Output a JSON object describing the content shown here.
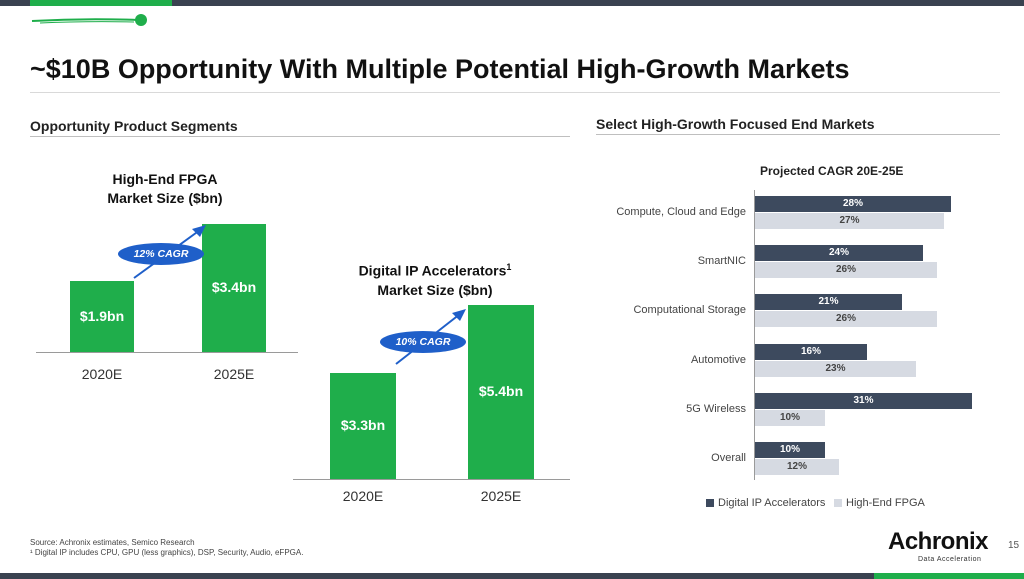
{
  "title": "~$10B Opportunity With Multiple Potential High-Growth Markets",
  "left_section_heading": "Opportunity Product Segments",
  "right_section_heading": "Select High-Growth Focused End Markets",
  "colors": {
    "green": "#1fae4b",
    "navy": "#3d4a5e",
    "light": "#d6dae2",
    "cagr_blue": "#1f5fc9",
    "bar_dark": "#3a4250"
  },
  "chart_data": [
    {
      "type": "bar",
      "title_line1": "High-End FPGA",
      "title_line2": "Market Size ($bn)",
      "categories": [
        "2020E",
        "2025E"
      ],
      "values": [
        1.9,
        3.4
      ],
      "value_labels": [
        "$1.9bn",
        "$3.4bn"
      ],
      "annotation": "12% CAGR"
    },
    {
      "type": "bar",
      "title_line1": "Digital IP Accelerators",
      "title_sup": "1",
      "title_line2": "Market Size ($bn)",
      "categories": [
        "2020E",
        "2025E"
      ],
      "values": [
        3.3,
        5.4
      ],
      "value_labels": [
        "$3.3bn",
        "$5.4bn"
      ],
      "annotation": "10% CAGR"
    },
    {
      "type": "bar",
      "orientation": "horizontal",
      "title": "Projected CAGR 20E-25E",
      "categories": [
        "Compute, Cloud and Edge",
        "SmartNIC",
        "Computational Storage",
        "Automotive",
        "5G Wireless",
        "Overall"
      ],
      "series": [
        {
          "name": "Digital IP Accelerators",
          "values": [
            28,
            24,
            21,
            16,
            31,
            10
          ],
          "labels": [
            "28%",
            "24%",
            "21%",
            "16%",
            "31%",
            "10%"
          ]
        },
        {
          "name": "High-End FPGA",
          "values": [
            27,
            26,
            26,
            23,
            10,
            12
          ],
          "labels": [
            "27%",
            "26%",
            "26%",
            "23%",
            "10%",
            "12%"
          ]
        }
      ],
      "legend": "bottom"
    }
  ],
  "footnotes": {
    "source": "Source: Achronix estimates, Semico Research",
    "note": "¹ Digital IP includes CPU, GPU (less graphics), DSP, Security, Audio, eFPGA."
  },
  "logo": {
    "name": "Achronix",
    "tagline": "Data Acceleration"
  },
  "page_number": "15"
}
